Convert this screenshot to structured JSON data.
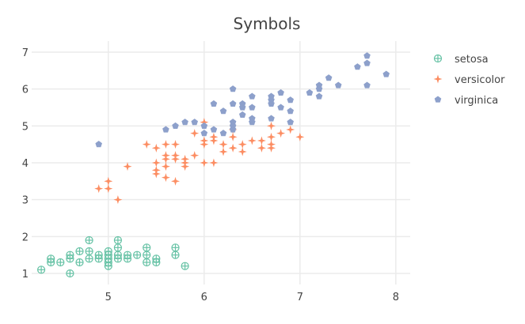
{
  "chart_data": {
    "type": "scatter",
    "title": "Symbols",
    "xlabel": "",
    "ylabel": "",
    "xlim": [
      4.2,
      8.15
    ],
    "ylim": [
      0.7,
      7.3
    ],
    "xticks": [
      5,
      6,
      7,
      8
    ],
    "yticks": [
      1,
      2,
      3,
      4,
      5,
      6,
      7
    ],
    "grid": true,
    "legend_position": "top-right",
    "series": [
      {
        "name": "setosa",
        "symbol": "circle-cross-open",
        "color": "#66c2a5",
        "points": [
          [
            4.3,
            1.1
          ],
          [
            4.4,
            1.3
          ],
          [
            4.4,
            1.4
          ],
          [
            4.5,
            1.3
          ],
          [
            4.6,
            1.0
          ],
          [
            4.6,
            1.4
          ],
          [
            4.6,
            1.5
          ],
          [
            4.7,
            1.3
          ],
          [
            4.7,
            1.6
          ],
          [
            4.8,
            1.4
          ],
          [
            4.8,
            1.6
          ],
          [
            4.8,
            1.9
          ],
          [
            4.9,
            1.4
          ],
          [
            4.9,
            1.5
          ],
          [
            5.0,
            1.2
          ],
          [
            5.0,
            1.3
          ],
          [
            5.0,
            1.4
          ],
          [
            5.0,
            1.5
          ],
          [
            5.0,
            1.6
          ],
          [
            5.1,
            1.4
          ],
          [
            5.1,
            1.5
          ],
          [
            5.1,
            1.7
          ],
          [
            5.1,
            1.9
          ],
          [
            5.2,
            1.4
          ],
          [
            5.2,
            1.5
          ],
          [
            5.3,
            1.5
          ],
          [
            5.4,
            1.3
          ],
          [
            5.4,
            1.5
          ],
          [
            5.4,
            1.7
          ],
          [
            5.5,
            1.3
          ],
          [
            5.5,
            1.4
          ],
          [
            5.7,
            1.5
          ],
          [
            5.7,
            1.7
          ],
          [
            5.8,
            1.2
          ]
        ]
      },
      {
        "name": "versicolor",
        "symbol": "star",
        "color": "#fc8d62",
        "points": [
          [
            4.9,
            3.3
          ],
          [
            5.0,
            3.3
          ],
          [
            5.0,
            3.5
          ],
          [
            5.1,
            3.0
          ],
          [
            5.2,
            3.9
          ],
          [
            5.4,
            4.5
          ],
          [
            5.5,
            3.7
          ],
          [
            5.5,
            3.8
          ],
          [
            5.5,
            4.0
          ],
          [
            5.5,
            4.4
          ],
          [
            5.6,
            3.6
          ],
          [
            5.6,
            3.9
          ],
          [
            5.6,
            4.1
          ],
          [
            5.6,
            4.2
          ],
          [
            5.6,
            4.5
          ],
          [
            5.7,
            3.5
          ],
          [
            5.7,
            4.1
          ],
          [
            5.7,
            4.2
          ],
          [
            5.7,
            4.5
          ],
          [
            5.8,
            3.9
          ],
          [
            5.8,
            4.0
          ],
          [
            5.8,
            4.1
          ],
          [
            5.9,
            4.2
          ],
          [
            5.9,
            4.8
          ],
          [
            6.0,
            4.0
          ],
          [
            6.0,
            4.5
          ],
          [
            6.0,
            5.1
          ],
          [
            6.0,
            4.6
          ],
          [
            6.1,
            4.0
          ],
          [
            6.1,
            4.6
          ],
          [
            6.1,
            4.7
          ],
          [
            6.2,
            4.3
          ],
          [
            6.2,
            4.5
          ],
          [
            6.3,
            4.4
          ],
          [
            6.3,
            4.7
          ],
          [
            6.3,
            4.9
          ],
          [
            6.4,
            4.3
          ],
          [
            6.4,
            4.5
          ],
          [
            6.5,
            4.6
          ],
          [
            6.6,
            4.4
          ],
          [
            6.6,
            4.6
          ],
          [
            6.7,
            4.4
          ],
          [
            6.7,
            4.5
          ],
          [
            6.7,
            4.7
          ],
          [
            6.7,
            5.0
          ],
          [
            6.8,
            4.8
          ],
          [
            6.9,
            4.9
          ],
          [
            7.0,
            4.7
          ]
        ]
      },
      {
        "name": "virginica",
        "symbol": "pentagon",
        "color": "#8da0cb",
        "points": [
          [
            4.9,
            4.5
          ],
          [
            5.6,
            4.9
          ],
          [
            5.7,
            5.0
          ],
          [
            5.8,
            5.1
          ],
          [
            5.9,
            5.1
          ],
          [
            6.0,
            4.8
          ],
          [
            6.0,
            5.0
          ],
          [
            6.1,
            4.9
          ],
          [
            6.1,
            5.6
          ],
          [
            6.2,
            4.8
          ],
          [
            6.2,
            5.4
          ],
          [
            6.3,
            4.9
          ],
          [
            6.3,
            5.0
          ],
          [
            6.3,
            5.1
          ],
          [
            6.3,
            5.6
          ],
          [
            6.3,
            6.0
          ],
          [
            6.4,
            5.3
          ],
          [
            6.4,
            5.5
          ],
          [
            6.4,
            5.6
          ],
          [
            6.5,
            5.1
          ],
          [
            6.5,
            5.2
          ],
          [
            6.5,
            5.5
          ],
          [
            6.5,
            5.8
          ],
          [
            6.7,
            5.2
          ],
          [
            6.7,
            5.6
          ],
          [
            6.7,
            5.7
          ],
          [
            6.7,
            5.8
          ],
          [
            6.8,
            5.5
          ],
          [
            6.8,
            5.9
          ],
          [
            6.9,
            5.1
          ],
          [
            6.9,
            5.4
          ],
          [
            6.9,
            5.7
          ],
          [
            7.1,
            5.9
          ],
          [
            7.2,
            5.8
          ],
          [
            7.2,
            6.0
          ],
          [
            7.2,
            6.1
          ],
          [
            7.3,
            6.3
          ],
          [
            7.4,
            6.1
          ],
          [
            7.6,
            6.6
          ],
          [
            7.7,
            6.1
          ],
          [
            7.7,
            6.7
          ],
          [
            7.7,
            6.9
          ],
          [
            7.9,
            6.4
          ]
        ]
      }
    ]
  }
}
